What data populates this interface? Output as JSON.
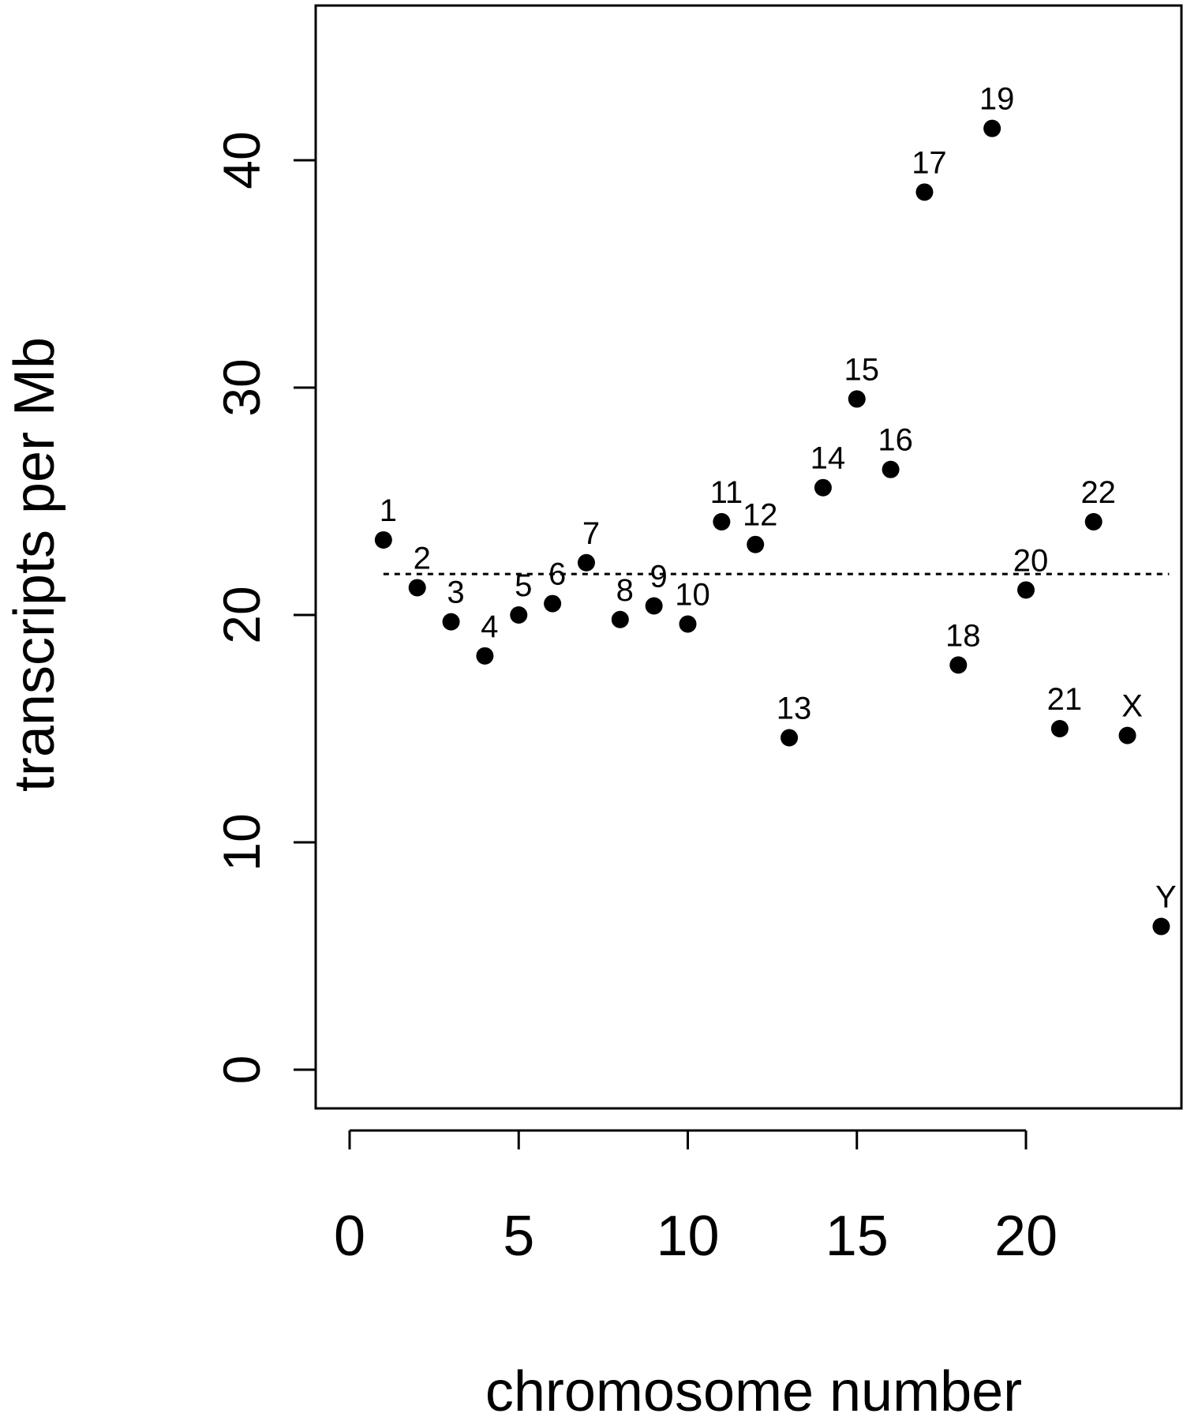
{
  "chart_data": {
    "type": "scatter",
    "title": "",
    "xlabel": "chromosome number",
    "ylabel": "transcripts per Mb",
    "xlim": [
      -1,
      25.2
    ],
    "ylim": [
      -2,
      47
    ],
    "xticks": [
      0,
      5,
      10,
      15,
      20
    ],
    "yticks": [
      0,
      10,
      20,
      30,
      40
    ],
    "grid": false,
    "legend": "none",
    "reference_line": {
      "y": 21.8,
      "x_range": [
        1,
        24
      ],
      "style": "dotted"
    },
    "points": [
      {
        "label": "1",
        "x": 1,
        "y": 23.3
      },
      {
        "label": "2",
        "x": 2,
        "y": 21.2
      },
      {
        "label": "3",
        "x": 3,
        "y": 19.7
      },
      {
        "label": "4",
        "x": 4,
        "y": 18.2
      },
      {
        "label": "5",
        "x": 5,
        "y": 20.0
      },
      {
        "label": "6",
        "x": 6,
        "y": 20.5
      },
      {
        "label": "7",
        "x": 7,
        "y": 22.3
      },
      {
        "label": "8",
        "x": 8,
        "y": 19.8
      },
      {
        "label": "9",
        "x": 9,
        "y": 20.4
      },
      {
        "label": "10",
        "x": 10,
        "y": 19.6
      },
      {
        "label": "11",
        "x": 11,
        "y": 24.1
      },
      {
        "label": "12",
        "x": 12,
        "y": 23.1
      },
      {
        "label": "13",
        "x": 13,
        "y": 14.6
      },
      {
        "label": "14",
        "x": 14,
        "y": 25.6
      },
      {
        "label": "15",
        "x": 15,
        "y": 29.5
      },
      {
        "label": "16",
        "x": 16,
        "y": 26.4
      },
      {
        "label": "17",
        "x": 17,
        "y": 38.6
      },
      {
        "label": "18",
        "x": 18,
        "y": 17.8
      },
      {
        "label": "19",
        "x": 19,
        "y": 41.4
      },
      {
        "label": "20",
        "x": 20,
        "y": 21.1
      },
      {
        "label": "21",
        "x": 21,
        "y": 15.0
      },
      {
        "label": "22",
        "x": 22,
        "y": 24.1
      },
      {
        "label": "X",
        "x": 23,
        "y": 14.7
      },
      {
        "label": "Y",
        "x": 24,
        "y": 6.3
      }
    ],
    "colors": {
      "marker": "#000000",
      "axis": "#000000",
      "background": "#ffffff"
    }
  }
}
